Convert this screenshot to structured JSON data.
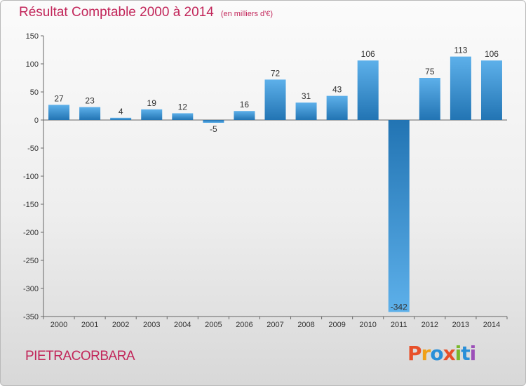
{
  "chart_data": {
    "type": "bar",
    "title": "Résultat Comptable 2000 à 2014",
    "unit_note": "(en milliers d'€)",
    "categories": [
      "2000",
      "2001",
      "2002",
      "2003",
      "2004",
      "2005",
      "2006",
      "2007",
      "2008",
      "2009",
      "2010",
      "2011",
      "2012",
      "2013",
      "2014"
    ],
    "values": [
      27,
      23,
      4,
      19,
      12,
      -5,
      16,
      72,
      31,
      43,
      106,
      -342,
      75,
      113,
      106
    ],
    "data_labels": [
      "27",
      "23",
      "4",
      "19",
      "12",
      "-5",
      "16",
      "72",
      "31",
      "43",
      "106",
      "-342",
      "75",
      "113",
      "106"
    ],
    "ylim": [
      -350,
      150
    ],
    "yticks": [
      150,
      100,
      50,
      0,
      -50,
      -100,
      -150,
      -200,
      -250,
      -300,
      -350
    ],
    "ytick_labels": [
      "150",
      "100",
      "50",
      "0",
      "-50",
      "-100",
      "-150",
      "-200",
      "-250",
      "-300",
      "-350"
    ],
    "xlabel": "",
    "ylabel": "",
    "grid": false,
    "legend": "none"
  },
  "footer": {
    "commune": "PIETRACORBARA",
    "brand": [
      "P",
      "r",
      "o",
      "x",
      "i",
      "t",
      "i"
    ]
  },
  "colors": {
    "title": "#c2265a",
    "bar_light": "#5db0ea",
    "bar_dark": "#2274b3",
    "axis": "#666666",
    "brand": [
      "#e8502a",
      "#f0a018",
      "#2a8fd8",
      "#e8502a",
      "#7ab82c",
      "#2a8fd8",
      "#9c4fb8"
    ]
  }
}
